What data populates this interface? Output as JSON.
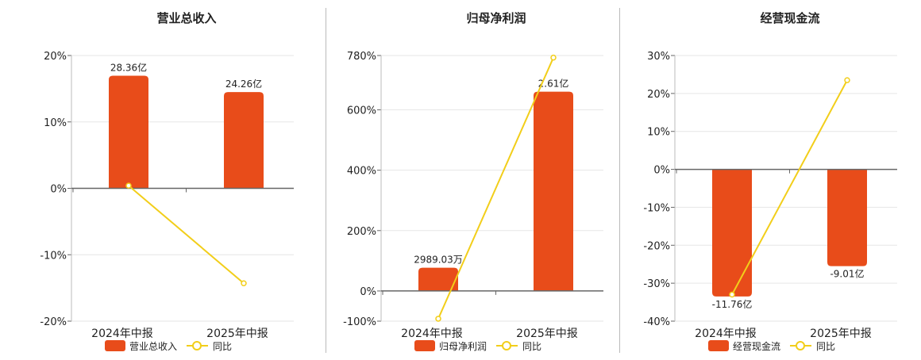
{
  "colors": {
    "bar": "#E84C1A",
    "line": "#F2CE1A",
    "grid": "#e6e6e6",
    "axis": "#666666",
    "text": "#222222"
  },
  "chart_data": [
    {
      "type": "bar",
      "title": "营业总收入",
      "categories": [
        "2024年中报",
        "2025年中报"
      ],
      "ylim": [
        -20,
        20
      ],
      "yticks": [
        20,
        10,
        0,
        -10,
        -20
      ],
      "ytick_labels": [
        "20%",
        "10%",
        "0%",
        "-10%",
        "-20%"
      ],
      "bar_values": [
        16.95,
        14.5
      ],
      "bar_labels": [
        "28.36亿",
        "24.26亿"
      ],
      "yoy_values": [
        0.4,
        -14.3
      ],
      "legend": [
        "营业总收入",
        "同比"
      ],
      "grid": true
    },
    {
      "type": "bar",
      "title": "归母净利润",
      "categories": [
        "2024年中报",
        "2025年中报"
      ],
      "ylim": [
        -100,
        780
      ],
      "yticks": [
        780,
        600,
        400,
        200,
        0,
        -100
      ],
      "ytick_labels": [
        "780%",
        "600%",
        "400%",
        "200%",
        "0%",
        "-100%"
      ],
      "bar_values": [
        77,
        660
      ],
      "bar_labels": [
        "2989.03万",
        "2.61亿"
      ],
      "yoy_values": [
        -92,
        773
      ],
      "legend": [
        "归母净利润",
        "同比"
      ],
      "grid": true
    },
    {
      "type": "bar",
      "title": "经营现金流",
      "categories": [
        "2024年中报",
        "2025年中报"
      ],
      "ylim": [
        -40,
        30
      ],
      "yticks": [
        30,
        20,
        10,
        0,
        -10,
        -20,
        -30,
        -40
      ],
      "ytick_labels": [
        "30%",
        "20%",
        "10%",
        "0%",
        "-10%",
        "-20%",
        "-30%",
        "-40%"
      ],
      "bar_values": [
        -33.5,
        -25.5
      ],
      "bar_labels": [
        "-11.76亿",
        "-9.01亿"
      ],
      "yoy_values": [
        -33,
        23.5
      ],
      "legend": [
        "经营现金流",
        "同比"
      ],
      "grid": true
    }
  ]
}
